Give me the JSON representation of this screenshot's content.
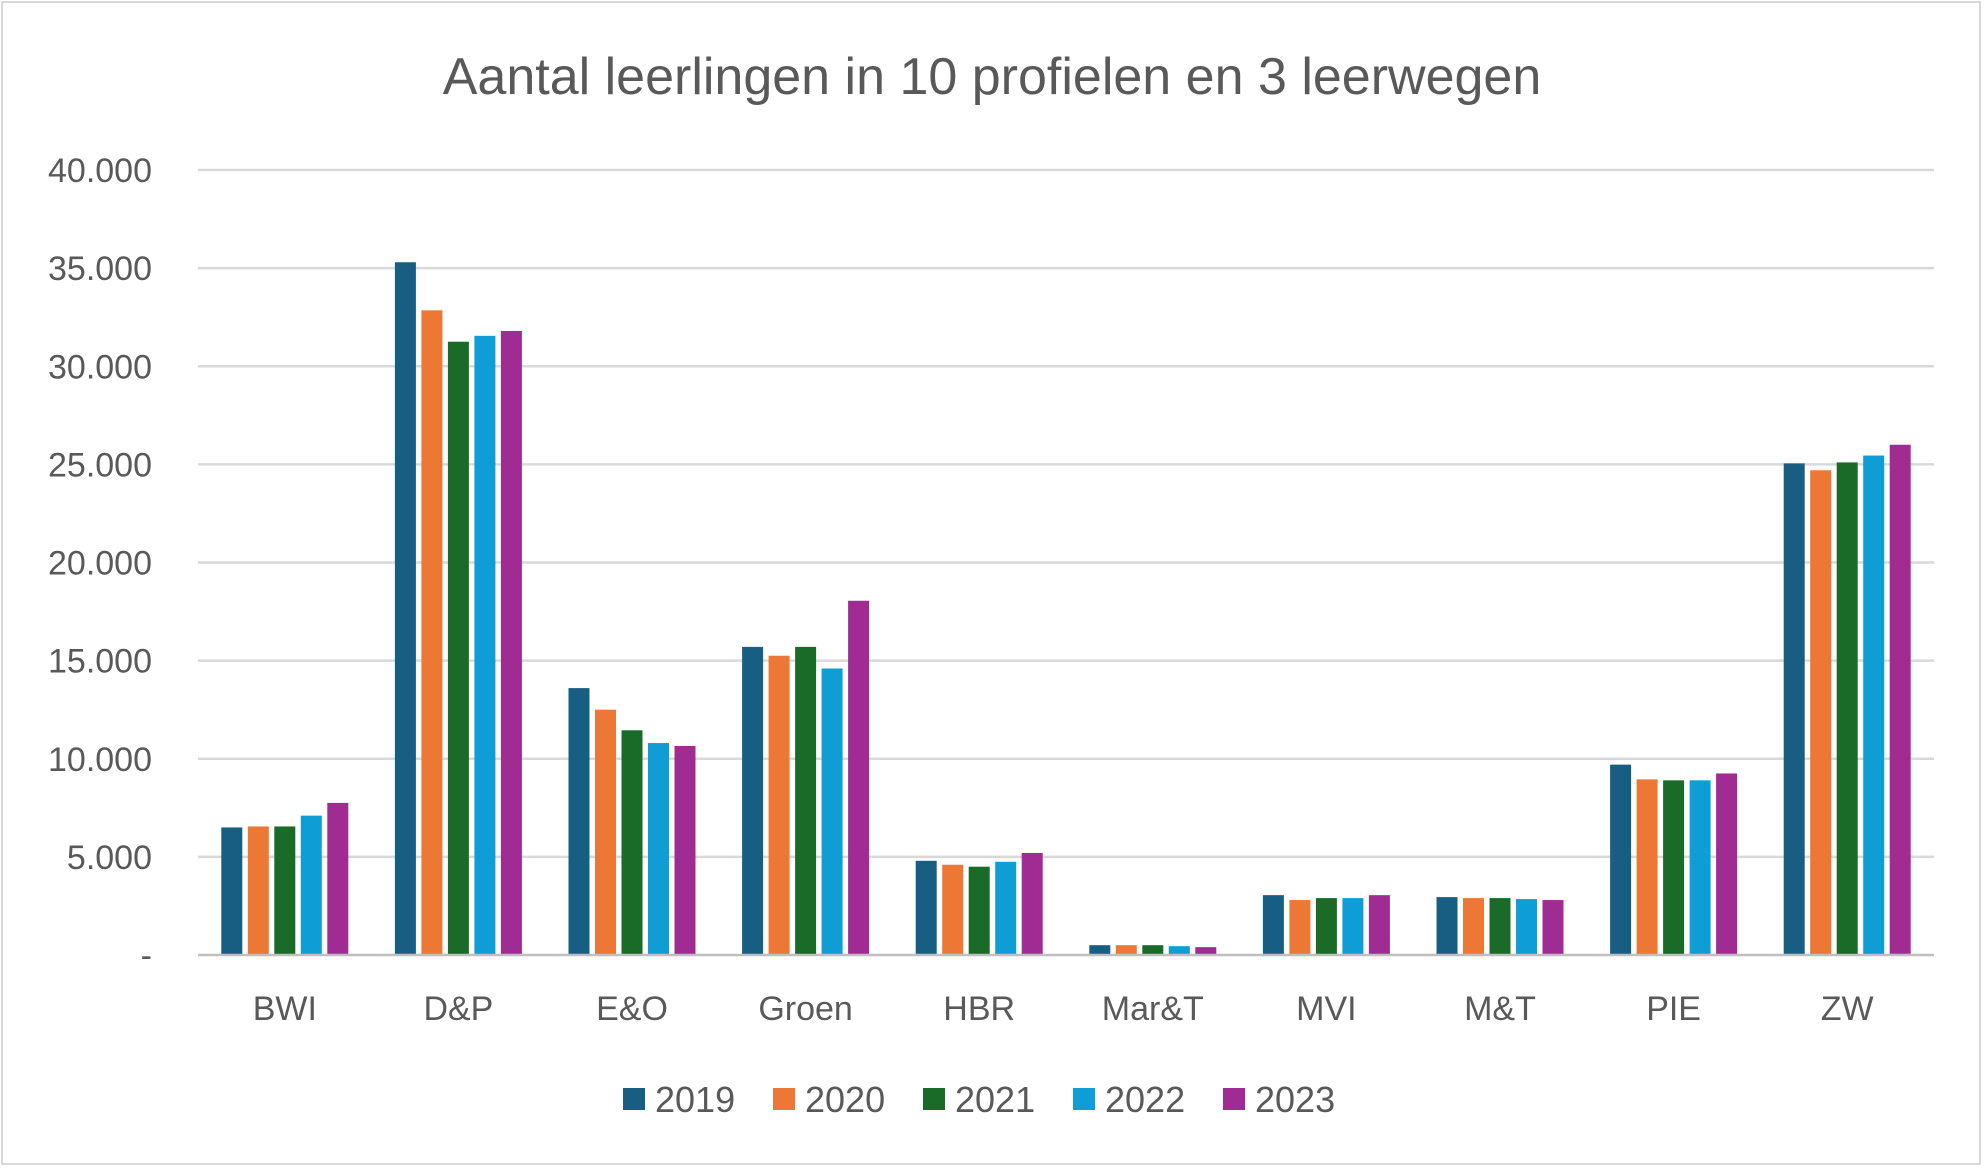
{
  "chart_data": {
    "type": "bar",
    "title": "Aantal leerlingen in 10 profielen en 3 leerwegen",
    "xlabel": "",
    "ylabel": "",
    "ylim": [
      0,
      40000
    ],
    "y_ticks": [
      0,
      5000,
      10000,
      15000,
      20000,
      25000,
      30000,
      35000,
      40000
    ],
    "y_tick_labels": [
      "-",
      "5.000",
      "10.000",
      "15.000",
      "20.000",
      "25.000",
      "30.000",
      "35.000",
      "40.000"
    ],
    "grid": true,
    "legend_position": "bottom",
    "categories": [
      "BWI",
      "D&P",
      "E&O",
      "Groen",
      "HBR",
      "Mar&T",
      "MVI",
      "M&T",
      "PIE",
      "ZW"
    ],
    "series": [
      {
        "name": "2019",
        "color": "#175E82",
        "values": [
          6500,
          35300,
          13600,
          15700,
          4800,
          500,
          3050,
          2950,
          9700,
          25050
        ]
      },
      {
        "name": "2020",
        "color": "#ED7734",
        "values": [
          6550,
          32850,
          12500,
          15250,
          4600,
          500,
          2800,
          2900,
          8950,
          24700
        ]
      },
      {
        "name": "2021",
        "color": "#1A6B27",
        "values": [
          6550,
          31250,
          11450,
          15700,
          4500,
          500,
          2900,
          2900,
          8900,
          25100
        ]
      },
      {
        "name": "2022",
        "color": "#0E9ED5",
        "values": [
          7100,
          31550,
          10800,
          14600,
          4750,
          450,
          2900,
          2850,
          8900,
          25450
        ]
      },
      {
        "name": "2023",
        "color": "#A02B93",
        "values": [
          7750,
          31800,
          10650,
          18050,
          5200,
          400,
          3050,
          2800,
          9250,
          26000
        ]
      }
    ]
  }
}
